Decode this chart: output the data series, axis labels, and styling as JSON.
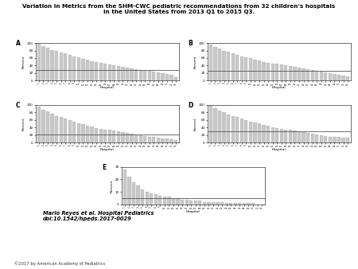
{
  "title": "Variation in Metrics from the SHM-CWC pediatric recommendations from 32 children's hospitals\nin the United States from 2013 Q1 to 2015 Q3.",
  "citation": "Mario Reyes et al. Hospital Pediatrics\ndoi:10.1542/hpeds.2017-0029",
  "copyright": "©2017 by American Academy of Pediatrics",
  "n_hospitals": 32,
  "bar_color": "#c8c8c8",
  "bar_edge_color": "#999999",
  "line_color": "#555555",
  "panel_A": {
    "values": [
      98,
      92,
      88,
      82,
      78,
      75,
      72,
      68,
      65,
      62,
      58,
      55,
      52,
      50,
      48,
      45,
      43,
      41,
      39,
      37,
      35,
      33,
      31,
      29,
      27,
      25,
      23,
      21,
      19,
      17,
      15,
      10
    ],
    "hline": 28,
    "ylim": [
      0,
      100
    ],
    "yticks": [
      0,
      20,
      40,
      60,
      80,
      100
    ]
  },
  "panel_B": {
    "values": [
      96,
      90,
      85,
      80,
      76,
      72,
      68,
      65,
      62,
      59,
      56,
      53,
      50,
      48,
      46,
      44,
      42,
      40,
      38,
      36,
      34,
      32,
      30,
      28,
      26,
      24,
      22,
      20,
      18,
      16,
      14,
      12
    ],
    "hline": 25,
    "ylim": [
      0,
      100
    ],
    "yticks": [
      0,
      20,
      40,
      60,
      80,
      100
    ]
  },
  "panel_C": {
    "values": [
      95,
      88,
      82,
      76,
      71,
      67,
      63,
      59,
      55,
      51,
      48,
      45,
      42,
      39,
      37,
      35,
      33,
      31,
      29,
      27,
      25,
      23,
      21,
      19,
      17,
      15,
      14,
      12,
      11,
      10,
      8,
      6
    ],
    "hline": 22,
    "ylim": [
      0,
      100
    ],
    "yticks": [
      0,
      20,
      40,
      60,
      80,
      100
    ]
  },
  "panel_D": {
    "values": [
      97,
      91,
      86,
      80,
      75,
      71,
      67,
      63,
      59,
      56,
      53,
      50,
      47,
      44,
      41,
      39,
      37,
      35,
      33,
      31,
      29,
      27,
      25,
      23,
      21,
      19,
      18,
      16,
      15,
      14,
      13,
      12
    ],
    "hline": 30,
    "ylim": [
      0,
      100
    ],
    "yticks": [
      0,
      20,
      40,
      60,
      80,
      100
    ]
  },
  "panel_E": {
    "values": [
      28,
      22,
      18,
      15,
      12,
      10,
      9,
      8,
      7,
      6,
      6,
      5,
      5,
      4,
      4,
      3,
      3,
      3,
      2,
      2,
      2,
      2,
      2,
      1,
      1,
      1,
      1,
      1,
      1,
      1,
      0,
      0
    ],
    "hline": 5,
    "ylim": [
      0,
      30
    ],
    "yticks": [
      0,
      10,
      20,
      30
    ]
  }
}
